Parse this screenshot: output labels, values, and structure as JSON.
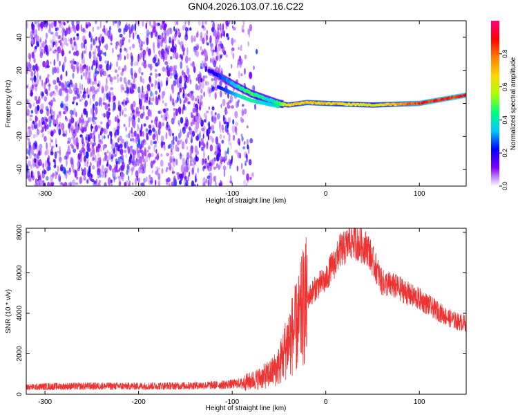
{
  "title": "GN04.2026.103.07.16.C22",
  "chart_data": [
    {
      "type": "heatmap",
      "name": "spectrogram",
      "xlabel": "Height of straight line (km)",
      "ylabel": "Frequency (Hz)",
      "xlim": [
        -320,
        150
      ],
      "ylim": [
        -50,
        50
      ],
      "xticks": [
        -300,
        -200,
        -100,
        0,
        100
      ],
      "xtick_labels": [
        "-300",
        "-200",
        "-100",
        "0",
        "100"
      ],
      "yticks": [
        -40,
        -20,
        0,
        20,
        40
      ],
      "ytick_labels": [
        "-40",
        "-20",
        "0",
        "20",
        "40"
      ],
      "colorbar": {
        "label": "Normalized spectral amplitude",
        "range": [
          0,
          1
        ],
        "ticks": [
          0,
          0.2,
          0.4,
          0.6,
          0.8
        ],
        "tick_labels": [
          "0.0",
          "0.2",
          "0.4",
          "0.6",
          "0.8"
        ],
        "colormap": [
          "#ffffff",
          "#7f00ff",
          "#0000ff",
          "#00c8ff",
          "#00ff7f",
          "#aaff00",
          "#ffd700",
          "#ff7f00",
          "#ff0000",
          "#ff0080"
        ]
      },
      "noise_region": {
        "x": [
          -320,
          -95
        ],
        "amplitude": [
          0.05,
          0.3
        ]
      },
      "signal_track": {
        "x": [
          -125,
          -115,
          -100,
          -90,
          -80,
          -70,
          -60,
          -50,
          -40,
          -20,
          0,
          50,
          100,
          130,
          150
        ],
        "freq_hz": [
          20,
          17,
          12,
          9,
          6,
          4,
          2,
          0,
          -1,
          0.5,
          0,
          -1,
          0,
          3,
          5
        ],
        "amplitude": [
          0.2,
          0.25,
          0.35,
          0.45,
          0.5,
          0.45,
          0.4,
          0.5,
          0.7,
          0.75,
          0.75,
          0.65,
          0.9,
          0.95,
          0.95
        ]
      }
    },
    {
      "type": "line",
      "name": "snr",
      "xlabel": "Height of straight line (km)",
      "ylabel": "SNR (10 * v/v)",
      "xlim": [
        -320,
        150
      ],
      "ylim": [
        0,
        8200
      ],
      "xticks": [
        -300,
        -200,
        -100,
        0,
        100
      ],
      "xtick_labels": [
        "-300",
        "-200",
        "-100",
        "0",
        "100"
      ],
      "yticks": [
        0,
        2000,
        4000,
        6000,
        8000
      ],
      "ytick_labels": [
        "0",
        "2000",
        "4000",
        "6000",
        "8000"
      ],
      "color": "#ee3333",
      "series": [
        {
          "name": "SNR",
          "x": [
            -320,
            -300,
            -250,
            -200,
            -150,
            -120,
            -100,
            -90,
            -80,
            -70,
            -60,
            -50,
            -45,
            -40,
            -35,
            -30,
            -25,
            -20,
            -15,
            -10,
            -5,
            0,
            5,
            10,
            15,
            20,
            25,
            30,
            35,
            40,
            45,
            50,
            55,
            60,
            70,
            80,
            90,
            100,
            110,
            120,
            130,
            140,
            150
          ],
          "y": [
            350,
            380,
            400,
            400,
            420,
            450,
            500,
            550,
            650,
            800,
            1000,
            1400,
            2000,
            2600,
            3000,
            3400,
            4200,
            4700,
            5000,
            5300,
            5500,
            5600,
            6200,
            6500,
            7100,
            7200,
            7500,
            7600,
            7400,
            7300,
            7200,
            6600,
            6100,
            5500,
            5400,
            5200,
            4900,
            4700,
            4400,
            4100,
            3800,
            3600,
            3500
          ]
        }
      ]
    }
  ]
}
